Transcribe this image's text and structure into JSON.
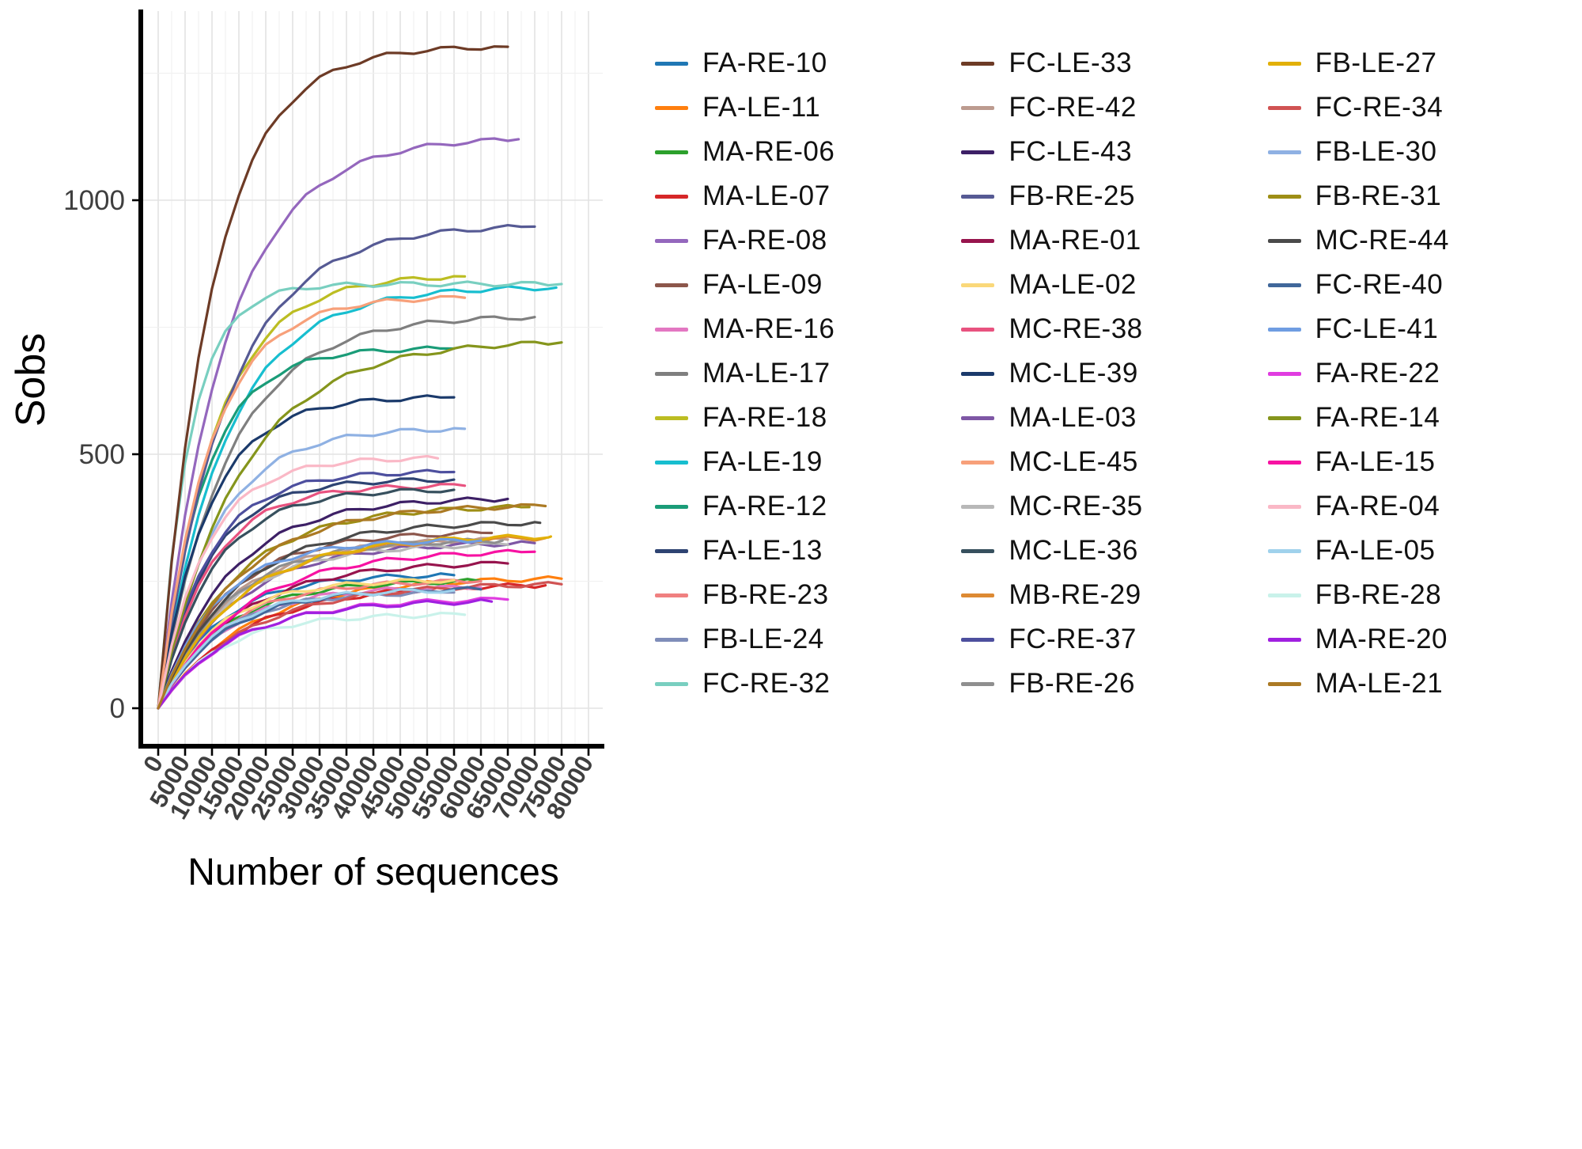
{
  "chart_data": {
    "type": "line",
    "title": "",
    "xlabel": "Number of sequences",
    "ylabel": "Sobs",
    "xlim": [
      0,
      80000
    ],
    "ylim": [
      0,
      1350
    ],
    "grid": true,
    "legend_position": "right",
    "legend_columns": 3,
    "x_ticks": [
      0,
      5000,
      10000,
      15000,
      20000,
      25000,
      30000,
      35000,
      40000,
      45000,
      50000,
      55000,
      60000,
      65000,
      70000,
      75000,
      80000
    ],
    "y_ticks": [
      0,
      500,
      1000
    ],
    "axis_color": "#000000",
    "grid_major_color": "#e3e3e3",
    "grid_minor_color": "#f0f0f0",
    "tick_label_color": "#3f3f3f",
    "series": [
      {
        "name": "FA-RE-10",
        "color": "#1f77b4",
        "x_end": 55000,
        "y_end": 262,
        "k": 5
      },
      {
        "name": "FA-LE-11",
        "color": "#ff7f0e",
        "x_end": 75000,
        "y_end": 255,
        "k": 4.5
      },
      {
        "name": "MA-RE-06",
        "color": "#2ca02c",
        "x_end": 60000,
        "y_end": 250,
        "k": 5
      },
      {
        "name": "MA-LE-07",
        "color": "#d62728",
        "x_end": 72000,
        "y_end": 242,
        "k": 4.5
      },
      {
        "name": "FA-RE-08",
        "color": "#9467bd",
        "x_end": 67000,
        "y_end": 1120,
        "k": 5.5
      },
      {
        "name": "FA-LE-09",
        "color": "#8c564b",
        "x_end": 62000,
        "y_end": 345,
        "k": 5
      },
      {
        "name": "MA-RE-16",
        "color": "#e377c2",
        "x_end": 60000,
        "y_end": 238,
        "k": 5
      },
      {
        "name": "MA-LE-17",
        "color": "#7f7f7f",
        "x_end": 70000,
        "y_end": 770,
        "k": 5.5
      },
      {
        "name": "FA-RE-18",
        "color": "#bcbd22",
        "x_end": 57000,
        "y_end": 850,
        "k": 5.5
      },
      {
        "name": "FA-LE-19",
        "color": "#17becf",
        "x_end": 74000,
        "y_end": 828,
        "k": 6
      },
      {
        "name": "FA-RE-12",
        "color": "#1a9c78",
        "x_end": 55000,
        "y_end": 708,
        "k": 6.5
      },
      {
        "name": "FA-LE-13",
        "color": "#2e4372",
        "x_end": 55000,
        "y_end": 450,
        "k": 6
      },
      {
        "name": "FB-RE-23",
        "color": "#f08080",
        "x_end": 60000,
        "y_end": 250,
        "k": 5
      },
      {
        "name": "FB-LE-24",
        "color": "#7f8db9",
        "x_end": 55000,
        "y_end": 228,
        "k": 5
      },
      {
        "name": "FC-RE-32",
        "color": "#79cfc0",
        "x_end": 75000,
        "y_end": 835,
        "k": 13
      },
      {
        "name": "FC-LE-33",
        "color": "#6d3b26",
        "x_end": 65000,
        "y_end": 1302,
        "k": 6.5
      },
      {
        "name": "FC-RE-42",
        "color": "#bc9b8f",
        "x_end": 65000,
        "y_end": 332,
        "k": 5
      },
      {
        "name": "FC-LE-43",
        "color": "#3d2066",
        "x_end": 65000,
        "y_end": 412,
        "k": 5
      },
      {
        "name": "FB-RE-25",
        "color": "#565a94",
        "x_end": 70000,
        "y_end": 948,
        "k": 5.5
      },
      {
        "name": "MA-RE-01",
        "color": "#97144d",
        "x_end": 65000,
        "y_end": 285,
        "k": 4.5
      },
      {
        "name": "MA-LE-02",
        "color": "#fad87a",
        "x_end": 55000,
        "y_end": 252,
        "k": 5
      },
      {
        "name": "MC-RE-38",
        "color": "#e8527f",
        "x_end": 57000,
        "y_end": 438,
        "k": 6
      },
      {
        "name": "MC-LE-39",
        "color": "#1b3a6b",
        "x_end": 55000,
        "y_end": 612,
        "k": 6
      },
      {
        "name": "MA-LE-03",
        "color": "#7e57a5",
        "x_end": 70000,
        "y_end": 325,
        "k": 5
      },
      {
        "name": "MC-LE-45",
        "color": "#f7a07a",
        "x_end": 57000,
        "y_end": 808,
        "k": 6
      },
      {
        "name": "MC-RE-35",
        "color": "#b8b8b8",
        "x_end": 65000,
        "y_end": 322,
        "k": 5
      },
      {
        "name": "MC-LE-36",
        "color": "#37505e",
        "x_end": 55000,
        "y_end": 430,
        "k": 5.5
      },
      {
        "name": "MB-RE-29",
        "color": "#dd8a33",
        "x_end": 72000,
        "y_end": 335,
        "k": 5
      },
      {
        "name": "FC-RE-37",
        "color": "#4d4f9e",
        "x_end": 55000,
        "y_end": 465,
        "k": 6
      },
      {
        "name": "FB-RE-26",
        "color": "#8f8f8f",
        "x_end": 64000,
        "y_end": 330,
        "k": 5
      },
      {
        "name": "FB-LE-27",
        "color": "#e2b007",
        "x_end": 73000,
        "y_end": 338,
        "k": 5
      },
      {
        "name": "FC-RE-34",
        "color": "#d05353",
        "x_end": 75000,
        "y_end": 244,
        "k": 4.5
      },
      {
        "name": "FB-LE-30",
        "color": "#8fb1e3",
        "x_end": 57000,
        "y_end": 550,
        "k": 5.5
      },
      {
        "name": "FB-RE-31",
        "color": "#9e8e15",
        "x_end": 69000,
        "y_end": 396,
        "k": 5
      },
      {
        "name": "MC-RE-44",
        "color": "#4a4a4a",
        "x_end": 71000,
        "y_end": 365,
        "k": 5
      },
      {
        "name": "FC-RE-40",
        "color": "#40679a",
        "x_end": 60000,
        "y_end": 234,
        "k": 5
      },
      {
        "name": "FC-LE-41",
        "color": "#6f9de2",
        "x_end": 60000,
        "y_end": 330,
        "k": 5.5
      },
      {
        "name": "FA-RE-22",
        "color": "#e03ce0",
        "x_end": 65000,
        "y_end": 214,
        "k": 4.5
      },
      {
        "name": "FA-RE-14",
        "color": "#85951c",
        "x_end": 75000,
        "y_end": 720,
        "k": 5
      },
      {
        "name": "FA-LE-15",
        "color": "#f712a2",
        "x_end": 70000,
        "y_end": 308,
        "k": 4.5
      },
      {
        "name": "FA-RE-04",
        "color": "#fab8c6",
        "x_end": 52000,
        "y_end": 492,
        "k": 6
      },
      {
        "name": "FA-LE-05",
        "color": "#a0d2ec",
        "x_end": 55000,
        "y_end": 232,
        "k": 5
      },
      {
        "name": "FB-RE-28",
        "color": "#c9f2ea",
        "x_end": 57000,
        "y_end": 184,
        "k": 5
      },
      {
        "name": "MA-RE-20",
        "color": "#a020e0",
        "x_end": 62000,
        "y_end": 210,
        "k": 4.5
      },
      {
        "name": "MA-LE-21",
        "color": "#ab7a24",
        "x_end": 72000,
        "y_end": 398,
        "k": 5
      }
    ]
  }
}
